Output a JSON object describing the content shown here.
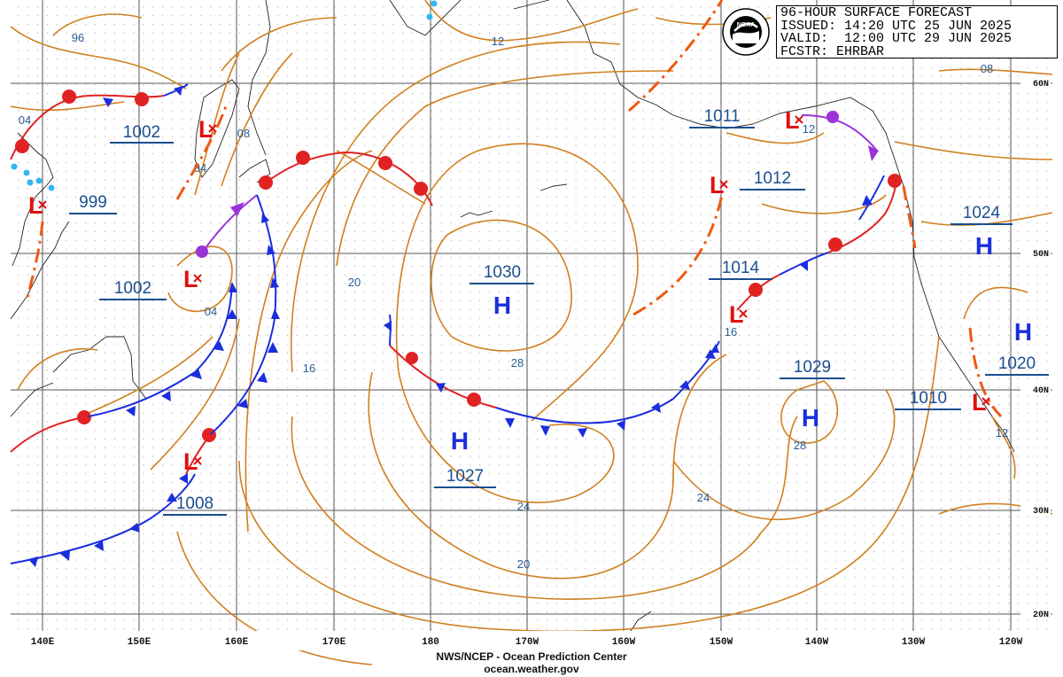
{
  "header": {
    "title": "96-HOUR SURFACE FORECAST",
    "issued": "ISSUED: 14:20 UTC 25 JUN 2025",
    "valid": "VALID:  12:00 UTC 29 JUN 2025",
    "forecaster": "FCSTR: EHRBAR"
  },
  "credit": {
    "line1": "NWS/NCEP - Ocean Prediction Center",
    "line2": "ocean.weather.gov"
  },
  "logo": {
    "icon": "noaa-logo-icon",
    "text": "NOAA"
  },
  "map": {
    "type": "surface-analysis",
    "lon_labels": [
      "140E",
      "150E",
      "160E",
      "170E",
      "180",
      "170W",
      "160W",
      "150W",
      "140W",
      "130W",
      "120W"
    ],
    "lat_labels": [
      "60N",
      "50N",
      "40N",
      "30N",
      "20N"
    ],
    "pressure_systems": [
      {
        "type": "H",
        "pressure": "1030",
        "lat": 47,
        "lon": 188
      },
      {
        "type": "H",
        "pressure": "1027",
        "lat": 36,
        "lon": 184
      },
      {
        "type": "H",
        "pressure": "1029",
        "lat": 38,
        "lon": 220
      },
      {
        "type": "H",
        "pressure": "1024",
        "lat": 51,
        "lon": 235
      },
      {
        "type": "H",
        "pressure": "1020",
        "lat": 44,
        "lon": 238
      },
      {
        "type": "L",
        "pressure": "1002",
        "lat": 57,
        "lon": 153
      },
      {
        "type": "L",
        "pressure": "999",
        "lat": 53,
        "lon": 143
      },
      {
        "type": "L",
        "pressure": "1002",
        "lat": 48,
        "lon": 157
      },
      {
        "type": "L",
        "pressure": "1008",
        "lat": 33,
        "lon": 158
      },
      {
        "type": "L",
        "pressure": "1011",
        "lat": 58,
        "lon": 210
      },
      {
        "type": "L",
        "pressure": "1012",
        "lat": 54,
        "lon": 212
      },
      {
        "type": "L",
        "pressure": "1014",
        "lat": 46,
        "lon": 209
      },
      {
        "type": "L",
        "pressure": "1010",
        "lat": 39,
        "lon": 232
      }
    ],
    "isobar_labels": [
      "96",
      "04",
      "08",
      "04",
      "04",
      "12",
      "20",
      "16",
      "28",
      "24",
      "20",
      "16",
      "12",
      "28",
      "24",
      "08"
    ]
  }
}
